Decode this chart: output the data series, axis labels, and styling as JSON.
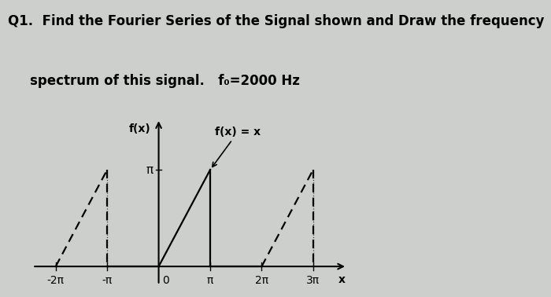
{
  "title_line1": "Q1.  Find the Fourier Series of the Signal shown and Draw the frequency",
  "title_line2": "spectrum of this signal.   f₀=2000 Hz",
  "background_color": "#cccfcc",
  "graph_label_y": "f(x)",
  "graph_label_func": "f(x) = x",
  "graph_label_x": "x",
  "pi_label": "π",
  "x_tick_labels": [
    "-2π",
    "-π",
    "0",
    "π",
    "2π",
    "3π"
  ],
  "x_tick_values": [
    -6.283185307,
    -3.141592653,
    0,
    3.141592653,
    6.283185307,
    9.424777961
  ],
  "y_tick_pi": 3.141592653,
  "x_range": [
    -8.0,
    11.5
  ],
  "y_range": [
    -0.8,
    4.8
  ],
  "title_fontsize": 12,
  "axis_fontsize": 10,
  "label_fontsize": 10
}
